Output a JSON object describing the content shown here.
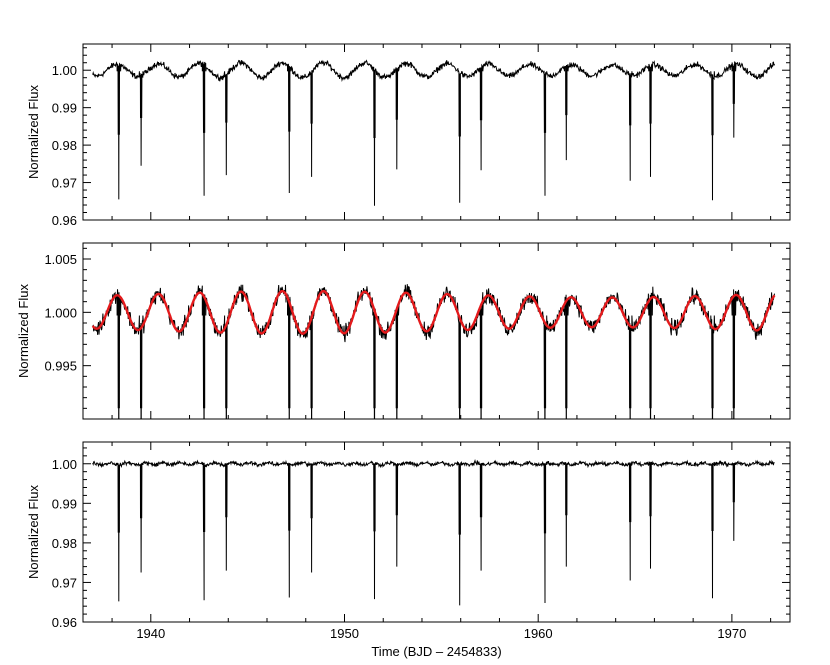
{
  "chart_data": [
    {
      "type": "line",
      "panel": "top",
      "xlim": [
        1936.5,
        1973
      ],
      "ylim": [
        0.96,
        1.007
      ],
      "ylabel": "Normalized Flux",
      "xlabel": "",
      "yticks": [
        0.96,
        0.97,
        0.98,
        0.99,
        1.0
      ],
      "ytick_labels": [
        "0.96",
        "0.97",
        "0.98",
        "0.99",
        "1.00"
      ],
      "xticks": [
        1940,
        1950,
        1960,
        1970
      ],
      "xtick_labels": [],
      "baseline": 1.0,
      "variability_amplitude": 0.002,
      "rotation_period_days": 2.13,
      "x_range": [
        1937.0,
        1972.2
      ],
      "primary_eclipses": [
        {
          "x": 1938.35,
          "y": 0.9655
        },
        {
          "x": 1942.75,
          "y": 0.9665
        },
        {
          "x": 1947.15,
          "y": 0.9672
        },
        {
          "x": 1951.55,
          "y": 0.9638
        },
        {
          "x": 1955.95,
          "y": 0.9646
        },
        {
          "x": 1960.35,
          "y": 0.9665
        },
        {
          "x": 1964.75,
          "y": 0.9705
        },
        {
          "x": 1969.0,
          "y": 0.9653
        }
      ],
      "secondary_eclipses": [
        {
          "x": 1939.5,
          "y": 0.9745
        },
        {
          "x": 1943.9,
          "y": 0.972
        },
        {
          "x": 1948.3,
          "y": 0.9715
        },
        {
          "x": 1952.7,
          "y": 0.9735
        },
        {
          "x": 1957.05,
          "y": 0.9733
        },
        {
          "x": 1961.45,
          "y": 0.976
        },
        {
          "x": 1965.8,
          "y": 0.9715
        },
        {
          "x": 1970.1,
          "y": 0.982
        }
      ],
      "series": [
        {
          "name": "",
          "color": "#000000"
        }
      ]
    },
    {
      "type": "line",
      "panel": "middle",
      "xlim": [
        1936.5,
        1973
      ],
      "ylim": [
        0.99,
        1.0065
      ],
      "ylabel": "Normalized Flux",
      "xlabel": "",
      "yticks": [
        0.995,
        1.0,
        1.005
      ],
      "ytick_labels": [
        "0.995",
        "1.000",
        "1.005"
      ],
      "xticks": [
        1940,
        1950,
        1960,
        1970
      ],
      "xtick_labels": [],
      "baseline": 1.0,
      "variability_amplitude": 0.002,
      "rotation_period_days": 2.13,
      "x_range": [
        1937.0,
        1972.2
      ],
      "series": [
        {
          "name": "",
          "color": "#000000"
        },
        {
          "name": "",
          "color": "#e41a1c",
          "model_amplitude": 0.002,
          "model_period": 2.13
        }
      ]
    },
    {
      "type": "line",
      "panel": "bottom",
      "xlim": [
        1936.5,
        1973
      ],
      "ylim": [
        0.96,
        1.0055
      ],
      "ylabel": "Normalized Flux",
      "xlabel": "Time (BJD – 2454833)",
      "yticks": [
        0.96,
        0.97,
        0.98,
        0.99,
        1.0
      ],
      "ytick_labels": [
        "0.96",
        "0.97",
        "0.98",
        "0.99",
        "1.00"
      ],
      "xticks": [
        1940,
        1950,
        1960,
        1970
      ],
      "xtick_labels": [
        "1940",
        "1950",
        "1960",
        "1970"
      ],
      "baseline": 1.0,
      "variability_amplitude": 0.0006,
      "x_range": [
        1937.0,
        1972.2
      ],
      "primary_eclipses": [
        {
          "x": 1938.35,
          "y": 0.9652
        },
        {
          "x": 1942.75,
          "y": 0.9655
        },
        {
          "x": 1947.15,
          "y": 0.9662
        },
        {
          "x": 1951.55,
          "y": 0.9658
        },
        {
          "x": 1955.95,
          "y": 0.9642
        },
        {
          "x": 1960.35,
          "y": 0.9648
        },
        {
          "x": 1964.75,
          "y": 0.9705
        },
        {
          "x": 1969.0,
          "y": 0.966
        }
      ],
      "secondary_eclipses": [
        {
          "x": 1939.5,
          "y": 0.9725
        },
        {
          "x": 1943.9,
          "y": 0.973
        },
        {
          "x": 1948.3,
          "y": 0.9725
        },
        {
          "x": 1952.7,
          "y": 0.974
        },
        {
          "x": 1957.05,
          "y": 0.973
        },
        {
          "x": 1961.45,
          "y": 0.974
        },
        {
          "x": 1965.8,
          "y": 0.9735
        },
        {
          "x": 1970.1,
          "y": 0.9805
        }
      ],
      "series": [
        {
          "name": "",
          "color": "#000000"
        }
      ]
    }
  ]
}
